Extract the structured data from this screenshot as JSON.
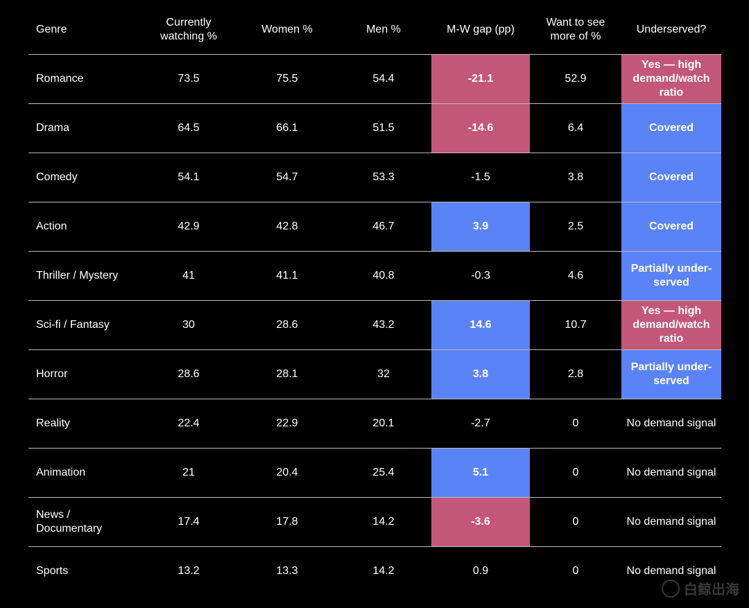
{
  "chart_data": {
    "type": "table",
    "columns": [
      "Genre",
      "Currently watching %",
      "Women %",
      "Men %",
      "M-W gap (pp)",
      "Want to see more of %",
      "Underserved?"
    ],
    "rows": [
      {
        "genre": "Romance",
        "watching": "73.5",
        "women": "75.5",
        "men": "54.4",
        "gap": "-21.1",
        "want": "52.9",
        "underserved": "Yes — high demand/watch ratio",
        "gap_color": "pink",
        "underserved_color": "pink"
      },
      {
        "genre": "Drama",
        "watching": "64.5",
        "women": "66.1",
        "men": "51.5",
        "gap": "-14.6",
        "want": "6.4",
        "underserved": "Covered",
        "gap_color": "pink",
        "underserved_color": "blue"
      },
      {
        "genre": "Comedy",
        "watching": "54.1",
        "women": "54.7",
        "men": "53.3",
        "gap": "-1.5",
        "want": "3.8",
        "underserved": "Covered",
        "gap_color": "none",
        "underserved_color": "blue"
      },
      {
        "genre": "Action",
        "watching": "42.9",
        "women": "42.8",
        "men": "46.7",
        "gap": "3.9",
        "want": "2.5",
        "underserved": "Covered",
        "gap_color": "blue",
        "underserved_color": "blue"
      },
      {
        "genre": "Thriller / Mystery",
        "watching": "41",
        "women": "41.1",
        "men": "40.8",
        "gap": "-0.3",
        "want": "4.6",
        "underserved": "Partially under-served",
        "gap_color": "none",
        "underserved_color": "blue"
      },
      {
        "genre": "Sci-fi / Fantasy",
        "watching": "30",
        "women": "28.6",
        "men": "43.2",
        "gap": "14.6",
        "want": "10.7",
        "underserved": "Yes — high demand/watch ratio",
        "gap_color": "blue",
        "underserved_color": "pink"
      },
      {
        "genre": "Horror",
        "watching": "28.6",
        "women": "28.1",
        "men": "32",
        "gap": "3.8",
        "want": "2.8",
        "underserved": "Partially under-served",
        "gap_color": "blue",
        "underserved_color": "blue"
      },
      {
        "genre": "Reality",
        "watching": "22.4",
        "women": "22.9",
        "men": "20.1",
        "gap": "-2.7",
        "want": "0",
        "underserved": "No demand signal",
        "gap_color": "none",
        "underserved_color": "none"
      },
      {
        "genre": "Animation",
        "watching": "21",
        "women": "20.4",
        "men": "25.4",
        "gap": "5.1",
        "want": "0",
        "underserved": "No demand signal",
        "gap_color": "blue",
        "underserved_color": "none"
      },
      {
        "genre": "News / Documentary",
        "watching": "17.4",
        "women": "17.8",
        "men": "14.2",
        "gap": "-3.6",
        "want": "0",
        "underserved": "No demand signal",
        "gap_color": "pink",
        "underserved_color": "none"
      },
      {
        "genre": "Sports",
        "watching": "13.2",
        "women": "13.3",
        "men": "14.2",
        "gap": "0.9",
        "want": "0",
        "underserved": "No demand signal",
        "gap_color": "none",
        "underserved_color": "none"
      }
    ],
    "colors": {
      "pink": "#c2577a",
      "blue": "#5b83f8",
      "background": "#000000",
      "rule": "#bdbdbd"
    }
  },
  "watermark": {
    "text": "白鲸出海"
  }
}
